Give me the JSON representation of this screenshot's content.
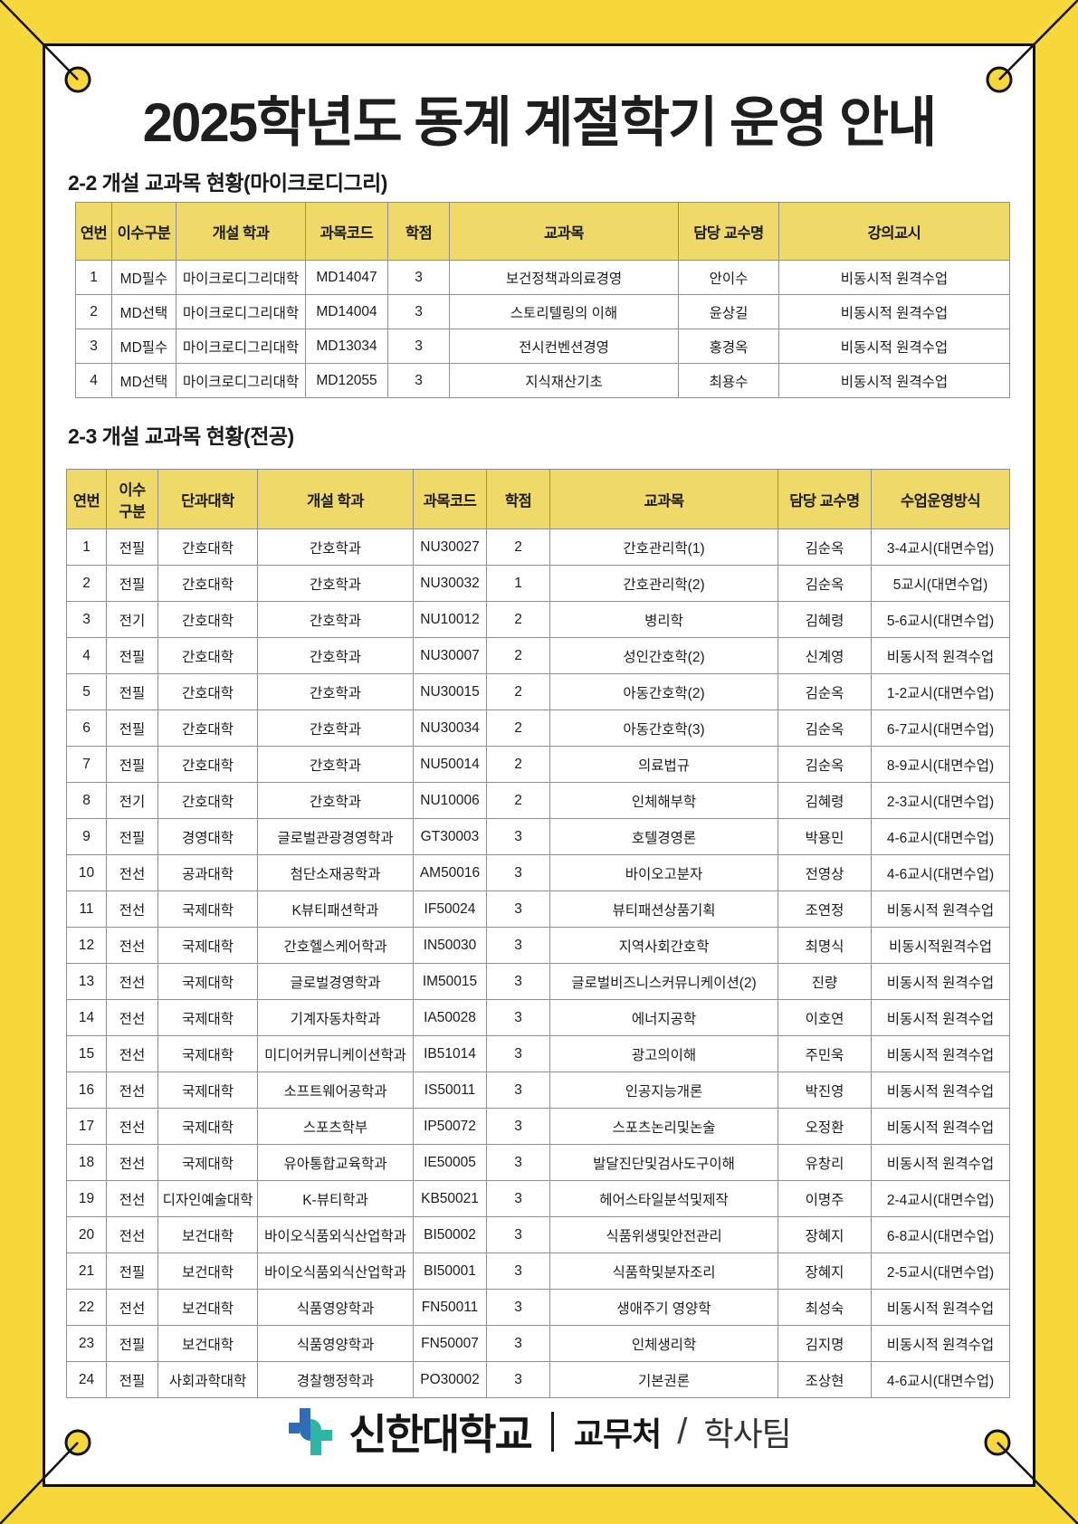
{
  "page_title": "2025학년도 동계 계절학기 운영 안내",
  "colors": {
    "background_yellow": "#f6d83b",
    "table_header_yellow": "#efd968",
    "table_border_gray": "#8f8f8f",
    "poster_border_black": "#111111",
    "logo_blue": "#2f6eb6",
    "logo_teal": "#2cb7a5"
  },
  "sections": [
    {
      "heading": "2-2 개설 교과목 현황(마이크로디그리)",
      "columns": [
        "연번",
        "이수구분",
        "개설 학과",
        "과목코드",
        "학점",
        "교과목",
        "담당 교수명",
        "강의교시"
      ],
      "rows": [
        [
          "1",
          "MD필수",
          "마이크로디그리대학",
          "MD14047",
          "3",
          "보건정책과의료경영",
          "안이수",
          "비동시적 원격수업"
        ],
        [
          "2",
          "MD선택",
          "마이크로디그리대학",
          "MD14004",
          "3",
          "스토리텔링의 이해",
          "윤상길",
          "비동시적 원격수업"
        ],
        [
          "3",
          "MD필수",
          "마이크로디그리대학",
          "MD13034",
          "3",
          "전시컨벤션경영",
          "홍경옥",
          "비동시적 원격수업"
        ],
        [
          "4",
          "MD선택",
          "마이크로디그리대학",
          "MD12055",
          "3",
          "지식재산기초",
          "최용수",
          "비동시적 원격수업"
        ]
      ]
    },
    {
      "heading": "2-3 개설 교과목 현황(전공)",
      "columns": [
        "연번",
        "이수\n구분",
        "단과대학",
        "개설 학과",
        "과목코드",
        "학점",
        "교과목",
        "담당 교수명",
        "수업운영방식"
      ],
      "rows": [
        [
          "1",
          "전필",
          "간호대학",
          "간호학과",
          "NU30027",
          "2",
          "간호관리학(1)",
          "김순옥",
          "3-4교시(대면수업)"
        ],
        [
          "2",
          "전필",
          "간호대학",
          "간호학과",
          "NU30032",
          "1",
          "간호관리학(2)",
          "김순옥",
          "5교시(대면수업)"
        ],
        [
          "3",
          "전기",
          "간호대학",
          "간호학과",
          "NU10012",
          "2",
          "병리학",
          "김혜령",
          "5-6교시(대면수업)"
        ],
        [
          "4",
          "전필",
          "간호대학",
          "간호학과",
          "NU30007",
          "2",
          "성인간호학(2)",
          "신계영",
          "비동시적 원격수업"
        ],
        [
          "5",
          "전필",
          "간호대학",
          "간호학과",
          "NU30015",
          "2",
          "아동간호학(2)",
          "김순옥",
          "1-2교시(대면수업)"
        ],
        [
          "6",
          "전필",
          "간호대학",
          "간호학과",
          "NU30034",
          "2",
          "아동간호학(3)",
          "김순옥",
          "6-7교시(대면수업)"
        ],
        [
          "7",
          "전필",
          "간호대학",
          "간호학과",
          "NU50014",
          "2",
          "의료법규",
          "김순옥",
          "8-9교시(대면수업)"
        ],
        [
          "8",
          "전기",
          "간호대학",
          "간호학과",
          "NU10006",
          "2",
          "인체해부학",
          "김혜령",
          "2-3교시(대면수업)"
        ],
        [
          "9",
          "전필",
          "경영대학",
          "글로벌관광경영학과",
          "GT30003",
          "3",
          "호텔경영론",
          "박용민",
          "4-6교시(대면수업)"
        ],
        [
          "10",
          "전선",
          "공과대학",
          "첨단소재공학과",
          "AM50016",
          "3",
          "바이오고분자",
          "전영상",
          "4-6교시(대면수업)"
        ],
        [
          "11",
          "전선",
          "국제대학",
          "K뷰티패션학과",
          "IF50024",
          "3",
          "뷰티패션상품기획",
          "조연정",
          "비동시적 원격수업"
        ],
        [
          "12",
          "전선",
          "국제대학",
          "간호헬스케어학과",
          "IN50030",
          "3",
          "지역사회간호학",
          "최명식",
          "비동시적원격수업"
        ],
        [
          "13",
          "전선",
          "국제대학",
          "글로벌경영학과",
          "IM50015",
          "3",
          "글로벌비즈니스커뮤니케이션(2)",
          "진량",
          "비동시적 원격수업"
        ],
        [
          "14",
          "전선",
          "국제대학",
          "기계자동차학과",
          "IA50028",
          "3",
          "에너지공학",
          "이호연",
          "비동시적 원격수업"
        ],
        [
          "15",
          "전선",
          "국제대학",
          "미디어커뮤니케이션학과",
          "IB51014",
          "3",
          "광고의이해",
          "주민욱",
          "비동시적 원격수업"
        ],
        [
          "16",
          "전선",
          "국제대학",
          "소프트웨어공학과",
          "IS50011",
          "3",
          "인공지능개론",
          "박진영",
          "비동시적 원격수업"
        ],
        [
          "17",
          "전선",
          "국제대학",
          "스포츠학부",
          "IP50072",
          "3",
          "스포츠논리및논술",
          "오정환",
          "비동시적 원격수업"
        ],
        [
          "18",
          "전선",
          "국제대학",
          "유아통합교육학과",
          "IE50005",
          "3",
          "발달진단및검사도구이해",
          "유창리",
          "비동시적 원격수업"
        ],
        [
          "19",
          "전선",
          "디자인예술대학",
          "K-뷰티학과",
          "KB50021",
          "3",
          "헤어스타일분석및제작",
          "이명주",
          "2-4교시(대면수업)"
        ],
        [
          "20",
          "전선",
          "보건대학",
          "바이오식품외식산업학과",
          "BI50002",
          "3",
          "식품위생및안전관리",
          "장혜지",
          "6-8교시(대면수업)"
        ],
        [
          "21",
          "전필",
          "보건대학",
          "바이오식품외식산업학과",
          "BI50001",
          "3",
          "식품학및분자조리",
          "장혜지",
          "2-5교시(대면수업)"
        ],
        [
          "22",
          "전선",
          "보건대학",
          "식품영양학과",
          "FN50011",
          "3",
          "생애주기 영양학",
          "최성숙",
          "비동시적 원격수업"
        ],
        [
          "23",
          "전필",
          "보건대학",
          "식품영양학과",
          "FN50007",
          "3",
          "인체생리학",
          "김지명",
          "비동시적 원격수업"
        ],
        [
          "24",
          "전필",
          "사회과학대학",
          "경찰행정학과",
          "PO30002",
          "3",
          "기본권론",
          "조상현",
          "4-6교시(대면수업)"
        ]
      ]
    }
  ],
  "footer": {
    "university": "신한대학교",
    "separator": "|",
    "department": "교무처",
    "slash": "/",
    "team": "학사팀"
  }
}
